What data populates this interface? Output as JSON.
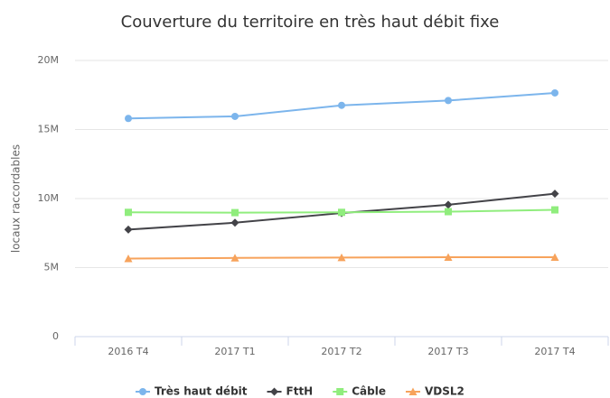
{
  "chart_data": {
    "type": "line",
    "title": "Couverture du territoire en très haut débit fixe",
    "y_axis_label": "locaux raccordables",
    "categories": [
      "2016 T4",
      "2017 T1",
      "2017 T2",
      "2017 T3",
      "2017 T4"
    ],
    "series": [
      {
        "name": "Très haut débit",
        "color": "#7cb5ec",
        "marker": "circle",
        "values": [
          15800000,
          15950000,
          16750000,
          17100000,
          17650000
        ]
      },
      {
        "name": "FttH",
        "color": "#434348",
        "marker": "diamond",
        "values": [
          7750000,
          8250000,
          8950000,
          9550000,
          10350000
        ]
      },
      {
        "name": "Câble",
        "color": "#90ed7d",
        "marker": "square",
        "values": [
          9000000,
          8980000,
          9000000,
          9050000,
          9180000
        ]
      },
      {
        "name": "VDSL2",
        "color": "#f7a35c",
        "marker": "triangle",
        "values": [
          5650000,
          5700000,
          5730000,
          5750000,
          5750000
        ]
      }
    ],
    "ylim": [
      0,
      20000000
    ],
    "yticks": [
      0,
      {
        "value": 5000000,
        "label": "5M"
      },
      {
        "value": 10000000,
        "label": "10M"
      },
      {
        "value": 15000000,
        "label": "15M"
      },
      {
        "value": 20000000,
        "label": "20M"
      }
    ],
    "grid": true,
    "legend": "bottom"
  }
}
